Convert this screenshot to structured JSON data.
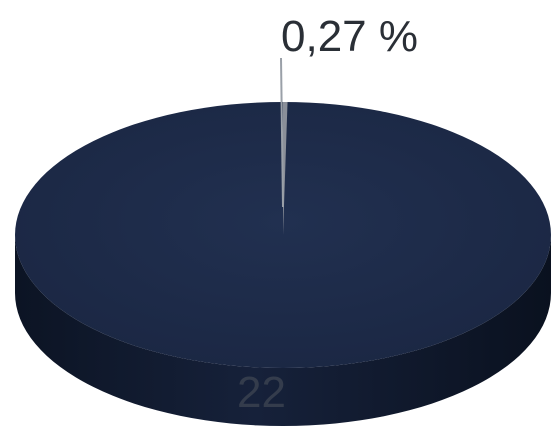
{
  "chart_data": {
    "type": "pie",
    "style": "3d",
    "slices": [
      {
        "value": 99.73,
        "color": "#1c2a46",
        "side_color": "#121c30"
      },
      {
        "value": 0.27,
        "color": "#8a8f99",
        "side_color": "#6f747c"
      }
    ],
    "data_labels": [
      "22",
      "0,27 %"
    ],
    "colors": {
      "top": "#1c2a46",
      "side": "#121c30",
      "leader": "#9aa0a8",
      "callout_text": "#2a2f36",
      "inside_text": "#343c4c"
    }
  }
}
